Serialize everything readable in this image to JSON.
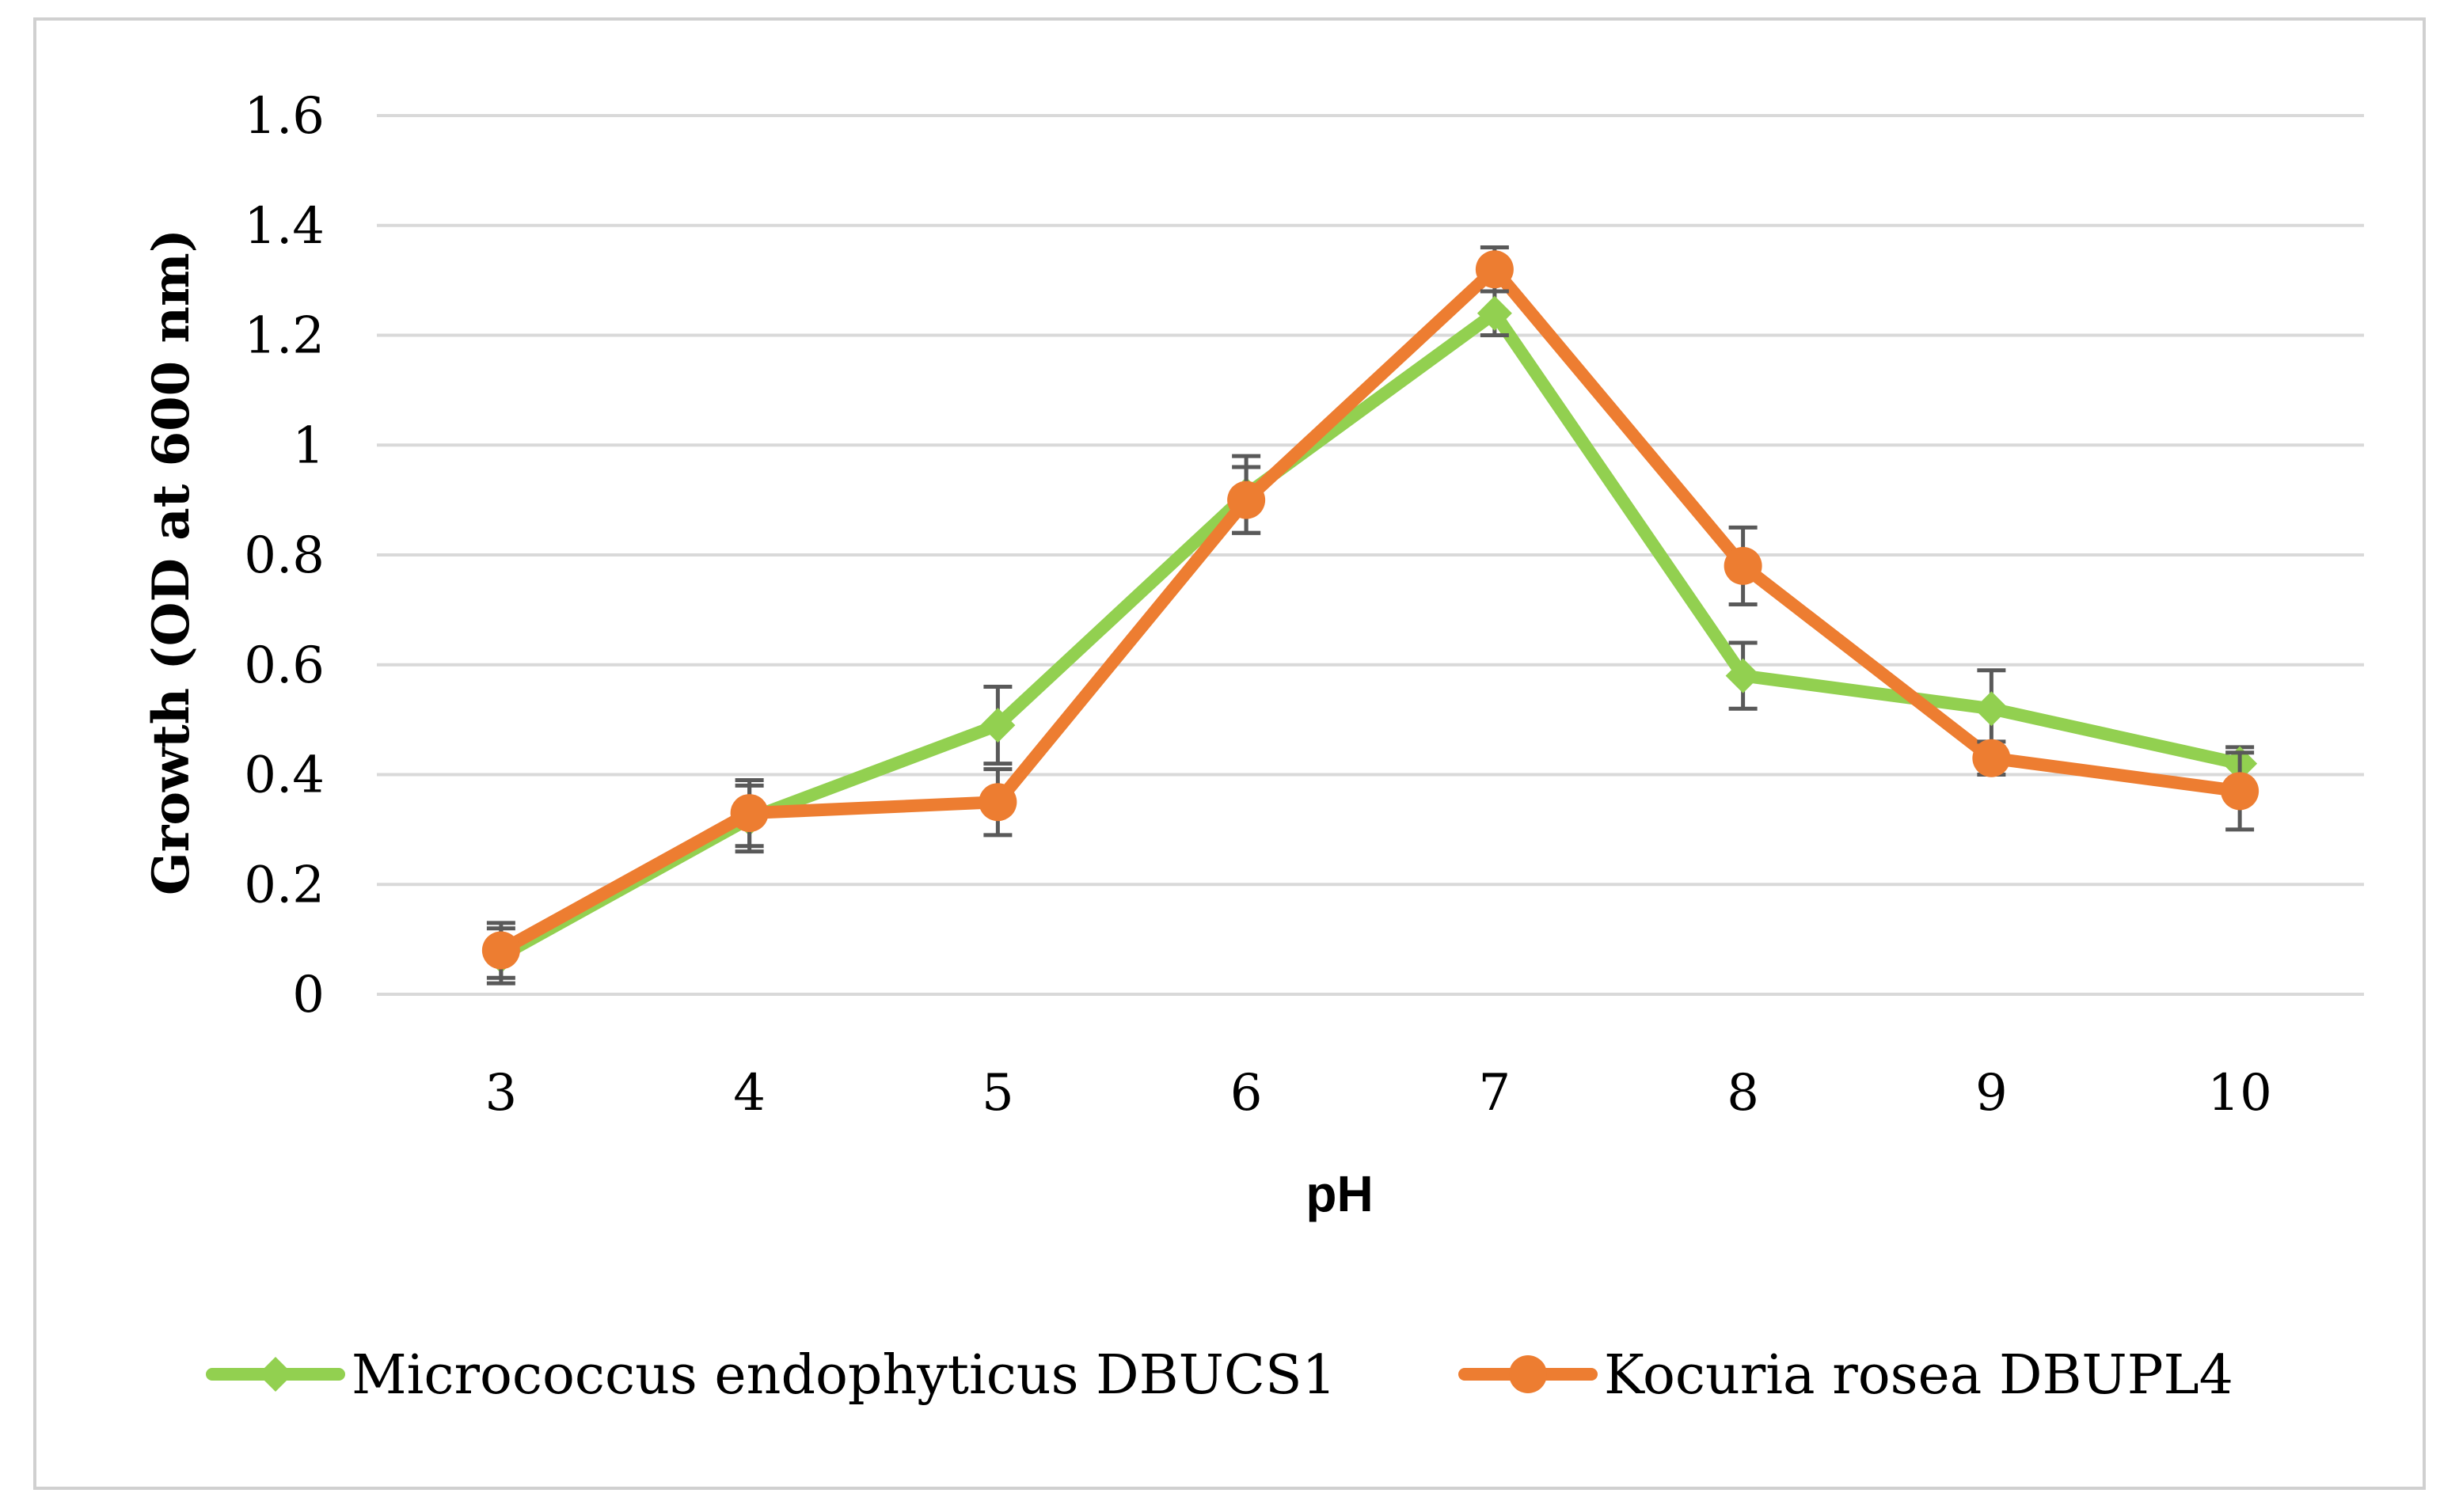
{
  "chart_data": {
    "type": "line",
    "title": "",
    "xlabel": "pH",
    "ylabel": "Growth (OD at 600 nm)",
    "categories": [
      "3",
      "4",
      "5",
      "6",
      "7",
      "8",
      "9",
      "10"
    ],
    "ylim": [
      0,
      1.6
    ],
    "yticks": [
      "0",
      "0.2",
      "0.4",
      "0.6",
      "0.8",
      "1",
      "1.2",
      "1.4",
      "1.6"
    ],
    "ytick_values": [
      0,
      0.2,
      0.4,
      0.6,
      0.8,
      1.0,
      1.2,
      1.4,
      1.6
    ],
    "grid": true,
    "legend_position": "bottom",
    "series": [
      {
        "name": "Micrococcus endophyticus DBUCS1",
        "color": "#92d050",
        "marker": "diamond",
        "values": [
          0.07,
          0.32,
          0.49,
          0.91,
          1.24,
          0.58,
          0.52,
          0.42
        ],
        "errors": [
          0.05,
          0.06,
          0.07,
          0.07,
          0.04,
          0.06,
          0.07,
          0.03
        ]
      },
      {
        "name": "Kocuria rosea DBUPL4",
        "color": "#ed7d31",
        "marker": "circle",
        "values": [
          0.08,
          0.33,
          0.35,
          0.9,
          1.32,
          0.78,
          0.43,
          0.37
        ],
        "errors": [
          0.05,
          0.06,
          0.06,
          0.06,
          0.04,
          0.07,
          0.03,
          0.07
        ]
      }
    ]
  }
}
